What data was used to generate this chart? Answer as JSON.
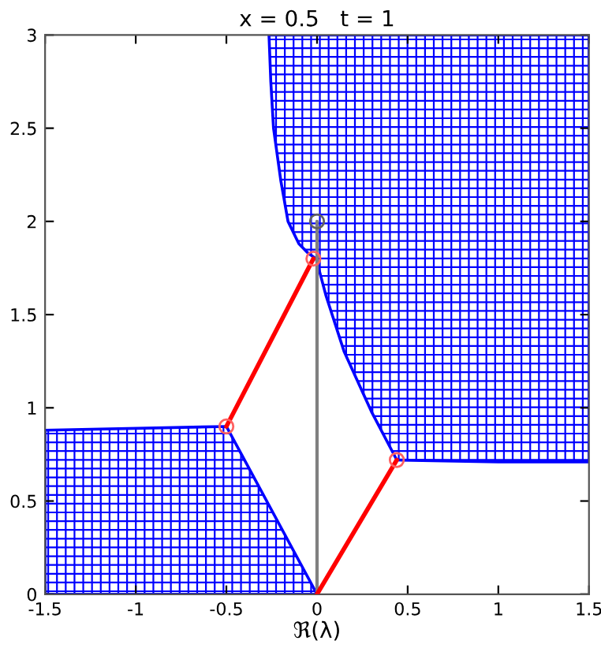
{
  "chart_data": {
    "type": "line",
    "title": "x = 0.5   t = 1",
    "xlabel": "ℜ(λ)",
    "xlim": [
      -1.5,
      1.5
    ],
    "ylim": [
      0,
      3
    ],
    "xticks": [
      -1.5,
      -1,
      -0.5,
      0,
      0.5,
      1,
      1.5
    ],
    "yticks": [
      0,
      0.5,
      1,
      1.5,
      2,
      2.5,
      3
    ],
    "grid": false,
    "legend": false,
    "series": [
      {
        "type": "area",
        "color": "#0000ff",
        "x": [
          -1.5,
          -0.5,
          0,
          -1.5
        ],
        "values": [
          0.88,
          0.9,
          0,
          0
        ]
      },
      {
        "type": "area",
        "color": "#0000ff",
        "x": [
          -0.265,
          -0.255,
          -0.24,
          -0.2,
          -0.16,
          -0.1,
          -0.05,
          -0.005,
          0.05,
          0.15,
          0.3,
          0.44,
          1.0,
          1.5,
          1.5
        ],
        "values": [
          3,
          2.75,
          2.5,
          2.22,
          2.0,
          1.88,
          1.83,
          1.8,
          1.6,
          1.3,
          0.98,
          0.72,
          0.71,
          0.71,
          3
        ]
      },
      {
        "color": "#808080",
        "x": [
          0,
          0
        ],
        "values": [
          0,
          2.0
        ]
      },
      {
        "type": "scatter",
        "color": "#606060",
        "x": [
          0
        ],
        "values": [
          2.0
        ]
      },
      {
        "color": "#ff0000",
        "x": [
          0,
          0.44
        ],
        "values": [
          0,
          0.72
        ]
      },
      {
        "color": "#ff0000",
        "x": [
          -0.5,
          -0.02
        ],
        "values": [
          0.9,
          1.8
        ]
      },
      {
        "type": "scatter",
        "color": "#ff6060",
        "x": [
          -0.5,
          -0.02,
          0.44
        ],
        "values": [
          0.9,
          1.8,
          0.72
        ]
      }
    ]
  }
}
